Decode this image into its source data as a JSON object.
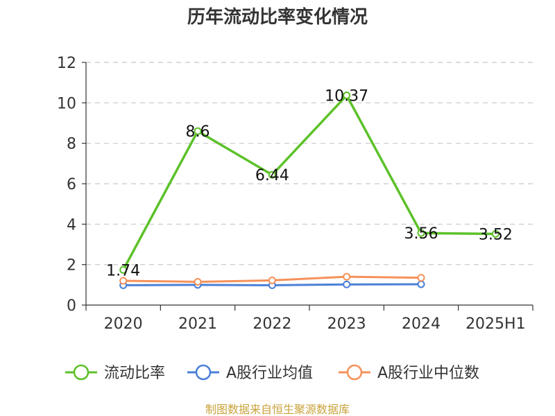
{
  "chart_data": {
    "type": "line",
    "title": "历年流动比率变化情况",
    "categories": [
      "2020",
      "2021",
      "2022",
      "2023",
      "2024",
      "2025H1"
    ],
    "ylim": [
      0,
      12
    ],
    "yticks": [
      "0",
      "2",
      "4",
      "6",
      "8",
      "10",
      "12"
    ],
    "grid": true,
    "legend_position": "bottom",
    "series": [
      {
        "name": "流动比率",
        "color": "#5cc129",
        "values": [
          1.74,
          8.6,
          6.44,
          10.37,
          3.56,
          3.52
        ],
        "labels": [
          "1.74",
          "8.6",
          "6.44",
          "10.37",
          "3.56",
          "3.52"
        ]
      },
      {
        "name": "A股行业均值",
        "color": "#4a7fd6",
        "values": [
          0.98,
          1.0,
          0.98,
          1.02,
          1.03,
          null
        ]
      },
      {
        "name": "A股行业中位数",
        "color": "#f5915a",
        "values": [
          1.2,
          1.15,
          1.22,
          1.4,
          1.35,
          null
        ]
      }
    ]
  },
  "source": {
    "text": "制图数据来自恒生聚源数据库",
    "color": "#c8a23a"
  }
}
